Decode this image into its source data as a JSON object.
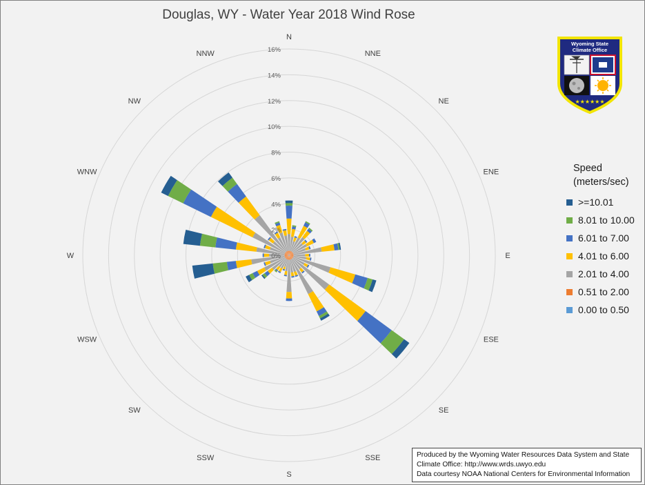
{
  "title": "Douglas, WY - Water Year 2018 Wind Rose",
  "legend": {
    "title_line1": "Speed",
    "title_line2": "(meters/sec)"
  },
  "credit": {
    "line1": "Produced by the Wyoming Water Resources Data System and State",
    "line2": "Climate Office: http://www.wrds.uwyo.edu",
    "line3": "Data courtesy NOAA National Centers for Environmental Information"
  },
  "logo": {
    "text_line1": "Wyoming State",
    "text_line2": "Climate Office",
    "stars": "★★★★★★"
  },
  "chart_data": {
    "type": "wind-rose (stacked polar bar)",
    "title": "Douglas, WY - Water Year 2018 Wind Rose",
    "radial_axis": {
      "range": [
        0,
        16
      ],
      "ticks": [
        "0%",
        "2%",
        "4%",
        "6%",
        "8%",
        "10%",
        "12%",
        "14%",
        "16%"
      ],
      "unit": "percent of observations"
    },
    "directions": [
      "N",
      "NNE",
      "NE",
      "ENE",
      "E",
      "ESE",
      "SE",
      "SSE",
      "S",
      "SSW",
      "SW",
      "WSW",
      "W",
      "WNW",
      "NW",
      "NNW"
    ],
    "speed_bins": [
      {
        "name": "0.00 to 0.50",
        "color": "#5b9bd5"
      },
      {
        "name": "0.51 to 2.00",
        "color": "#ed7d31"
      },
      {
        "name": "2.01 to 4.00",
        "color": "#a5a5a5"
      },
      {
        "name": "4.01 to 6.00",
        "color": "#ffc000"
      },
      {
        "name": "6.01 to 7.00",
        "color": "#4472c4"
      },
      {
        "name": "8.01 to 10.00",
        "color": "#70ad47"
      },
      {
        "name": ">=10.01",
        "color": "#255e91"
      }
    ],
    "legend_order": [
      ">=10.01",
      "8.01 to 10.00",
      "6.01 to 7.00",
      "4.01 to 6.00",
      "2.01 to 4.00",
      "0.51 to 2.00",
      "0.00 to 0.50"
    ],
    "sectors_note": "36 sectors at 10-degree intervals starting at North, clockwise; values are percent of observations per speed bin (read from chart).",
    "sectors": [
      {
        "dir_deg": 0,
        "values": [
          0.05,
          0.3,
          1.3,
          1.2,
          1.0,
          0.2,
          0.2
        ]
      },
      {
        "dir_deg": 10,
        "values": [
          0.05,
          0.3,
          1.1,
          0.6,
          0.2,
          0.1,
          0.0
        ]
      },
      {
        "dir_deg": 20,
        "values": [
          0.05,
          0.3,
          0.8,
          0.3,
          0.1,
          0.0,
          0.0
        ]
      },
      {
        "dir_deg": 30,
        "values": [
          0.05,
          0.3,
          1.2,
          1.0,
          0.3,
          0.1,
          0.0
        ]
      },
      {
        "dir_deg": 40,
        "values": [
          0.05,
          0.3,
          1.4,
          0.6,
          0.2,
          0.1,
          0.0
        ]
      },
      {
        "dir_deg": 50,
        "values": [
          0.05,
          0.3,
          1.0,
          0.3,
          0.1,
          0.0,
          0.0
        ]
      },
      {
        "dir_deg": 60,
        "values": [
          0.05,
          0.3,
          1.2,
          0.6,
          0.2,
          0.0,
          0.0
        ]
      },
      {
        "dir_deg": 70,
        "values": [
          0.05,
          0.3,
          1.0,
          0.3,
          0.1,
          0.0,
          0.0
        ]
      },
      {
        "dir_deg": 80,
        "values": [
          0.05,
          0.3,
          2.2,
          1.0,
          0.3,
          0.1,
          0.1
        ]
      },
      {
        "dir_deg": 90,
        "values": [
          0.05,
          0.3,
          0.9,
          0.3,
          0.1,
          0.0,
          0.0
        ]
      },
      {
        "dir_deg": 100,
        "values": [
          0.05,
          0.3,
          1.0,
          0.3,
          0.1,
          0.0,
          0.0
        ]
      },
      {
        "dir_deg": 110,
        "values": [
          0.05,
          0.3,
          3.0,
          2.0,
          1.0,
          0.4,
          0.3
        ]
      },
      {
        "dir_deg": 120,
        "values": [
          0.05,
          0.3,
          1.0,
          0.3,
          0.1,
          0.0,
          0.0
        ]
      },
      {
        "dir_deg": 130,
        "values": [
          0.05,
          0.3,
          3.5,
          3.5,
          2.5,
          1.2,
          0.5
        ]
      },
      {
        "dir_deg": 140,
        "values": [
          0.05,
          0.3,
          1.0,
          0.3,
          0.1,
          0.0,
          0.0
        ]
      },
      {
        "dir_deg": 150,
        "values": [
          0.05,
          0.3,
          3.0,
          1.5,
          0.4,
          0.2,
          0.2
        ]
      },
      {
        "dir_deg": 160,
        "values": [
          0.05,
          0.3,
          1.0,
          0.3,
          0.1,
          0.0,
          0.0
        ]
      },
      {
        "dir_deg": 170,
        "values": [
          0.05,
          0.3,
          1.0,
          0.3,
          0.1,
          0.0,
          0.0
        ]
      },
      {
        "dir_deg": 180,
        "values": [
          0.05,
          0.3,
          2.5,
          0.5,
          0.2,
          0.0,
          0.0
        ]
      },
      {
        "dir_deg": 190,
        "values": [
          0.05,
          0.3,
          0.9,
          0.3,
          0.1,
          0.0,
          0.0
        ]
      },
      {
        "dir_deg": 200,
        "values": [
          0.05,
          0.3,
          0.6,
          0.2,
          0.1,
          0.0,
          0.0
        ]
      },
      {
        "dir_deg": 210,
        "values": [
          0.05,
          0.3,
          0.8,
          0.3,
          0.1,
          0.0,
          0.0
        ]
      },
      {
        "dir_deg": 220,
        "values": [
          0.05,
          0.3,
          0.8,
          0.3,
          0.1,
          0.1,
          0.0
        ]
      },
      {
        "dir_deg": 230,
        "values": [
          0.05,
          0.3,
          1.3,
          0.4,
          0.3,
          0.2,
          0.1
        ]
      },
      {
        "dir_deg": 240,
        "values": [
          0.05,
          0.3,
          1.8,
          0.6,
          0.4,
          0.3,
          0.3
        ]
      },
      {
        "dir_deg": 250,
        "values": [
          0.05,
          0.3,
          1.2,
          0.4,
          0.1,
          0.0,
          0.0
        ]
      },
      {
        "dir_deg": 260,
        "values": [
          0.05,
          0.3,
          2.6,
          1.2,
          0.7,
          1.1,
          1.6
        ]
      },
      {
        "dir_deg": 270,
        "values": [
          0.05,
          0.3,
          1.2,
          0.4,
          0.1,
          0.0,
          0.0
        ]
      },
      {
        "dir_deg": 280,
        "values": [
          0.05,
          0.3,
          2.2,
          1.6,
          1.6,
          1.2,
          1.3
        ]
      },
      {
        "dir_deg": 290,
        "values": [
          0.05,
          0.3,
          1.2,
          0.4,
          0.1,
          0.0,
          0.0
        ]
      },
      {
        "dir_deg": 300,
        "values": [
          0.05,
          0.3,
          2.8,
          3.6,
          2.4,
          1.3,
          0.6
        ]
      },
      {
        "dir_deg": 310,
        "values": [
          0.05,
          0.3,
          1.2,
          0.4,
          0.1,
          0.0,
          0.0
        ]
      },
      {
        "dir_deg": 320,
        "values": [
          0.05,
          0.3,
          3.5,
          1.8,
          1.2,
          0.6,
          0.5
        ]
      },
      {
        "dir_deg": 330,
        "values": [
          0.05,
          0.3,
          1.2,
          0.4,
          0.1,
          0.0,
          0.0
        ]
      },
      {
        "dir_deg": 340,
        "values": [
          0.05,
          0.3,
          1.5,
          0.6,
          0.2,
          0.1,
          0.0
        ]
      },
      {
        "dir_deg": 350,
        "values": [
          0.05,
          0.3,
          1.2,
          0.4,
          0.1,
          0.0,
          0.0
        ]
      }
    ],
    "grid": true,
    "legend_position": "right"
  }
}
